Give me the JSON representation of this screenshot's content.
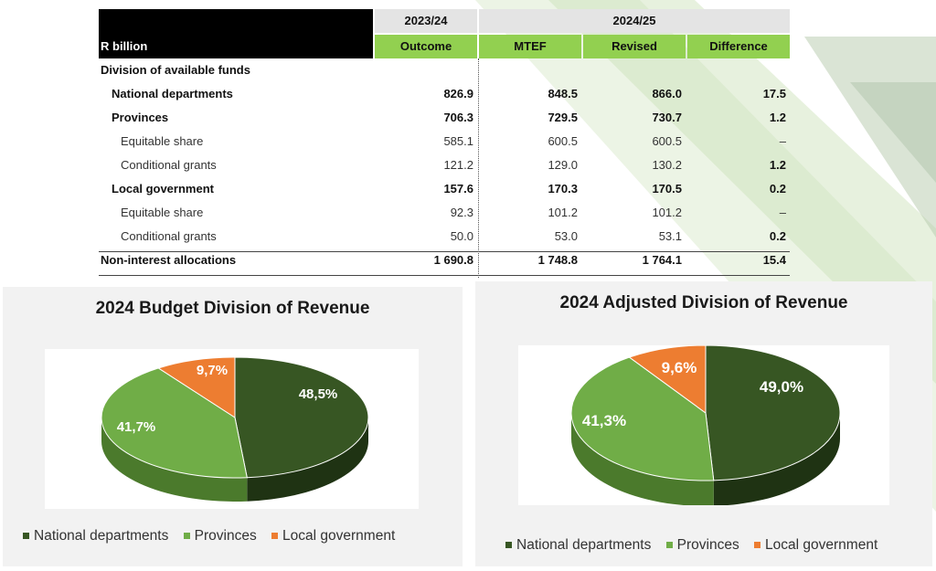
{
  "table": {
    "unit_label": "R billion",
    "period_headers": [
      "2023/24",
      "2024/25"
    ],
    "column_headers": [
      "Outcome",
      "MTEF",
      "Revised",
      "Difference"
    ],
    "section_label": "Division of available funds",
    "rows": [
      {
        "label": "National departments",
        "values": [
          "826.9",
          "848.5",
          "866.0",
          "17.5"
        ],
        "level": 1,
        "bold": true
      },
      {
        "label": "Provinces",
        "values": [
          "706.3",
          "729.5",
          "730.7",
          "1.2"
        ],
        "level": 1,
        "bold": true
      },
      {
        "label": "Equitable share",
        "values": [
          "585.1",
          "600.5",
          "600.5",
          "–"
        ],
        "level": 2,
        "bold": false
      },
      {
        "label": "Conditional grants",
        "values": [
          "121.2",
          "129.0",
          "130.2",
          "1.2"
        ],
        "level": 2,
        "bold": false
      },
      {
        "label": "Local government",
        "values": [
          "157.6",
          "170.3",
          "170.5",
          "0.2"
        ],
        "level": 1,
        "bold": true
      },
      {
        "label": "Equitable share",
        "values": [
          "92.3",
          "101.2",
          "101.2",
          "–"
        ],
        "level": 2,
        "bold": false
      },
      {
        "label": "Conditional grants",
        "values": [
          "50.0",
          "53.0",
          "53.1",
          "0.2"
        ],
        "level": 2,
        "bold": false
      },
      {
        "label": "Non-interest allocations",
        "values": [
          "1 690.8",
          "1 748.8",
          "1 764.1",
          "15.4"
        ],
        "level": 0,
        "bold": true
      }
    ]
  },
  "chart_data": [
    {
      "type": "pie",
      "title": "2024 Budget Division of Revenue",
      "categories": [
        "National departments",
        "Provinces",
        "Local government"
      ],
      "values": [
        48.5,
        41.7,
        9.7
      ],
      "labels": [
        "48,5%",
        "41,7%",
        "9,7%"
      ],
      "colors": [
        "#375623",
        "#70ad47",
        "#ed7d31"
      ],
      "legend_position": "bottom"
    },
    {
      "type": "pie",
      "title": "2024 Adjusted Division of Revenue",
      "categories": [
        "National departments",
        "Provinces",
        "Local government"
      ],
      "values": [
        49.0,
        41.3,
        9.6
      ],
      "labels": [
        "49,0%",
        "41,3%",
        "9,6%"
      ],
      "colors": [
        "#375623",
        "#70ad47",
        "#ed7d31"
      ],
      "legend_position": "bottom"
    }
  ]
}
